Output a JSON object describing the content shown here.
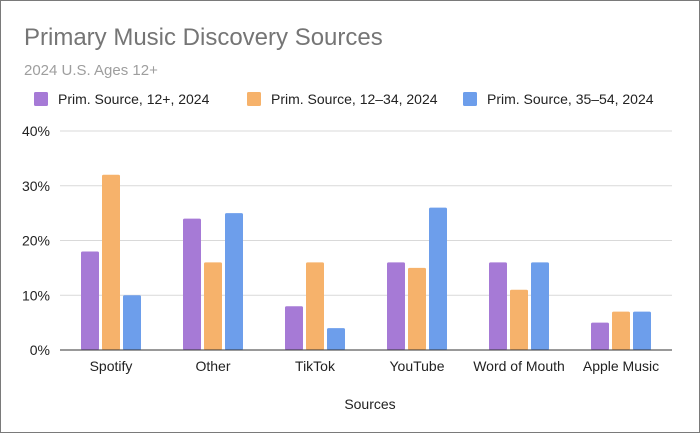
{
  "chart_data": {
    "type": "bar",
    "title": "Primary Music Discovery Sources",
    "subtitle": "2024 U.S. Ages 12+",
    "xlabel": "Sources",
    "ylabel": "",
    "ylim": [
      0,
      40
    ],
    "yticks": [
      0,
      10,
      20,
      30,
      40
    ],
    "ytick_labels": [
      "0%",
      "10%",
      "20%",
      "30%",
      "40%"
    ],
    "grid": true,
    "legend_position": "top",
    "categories": [
      "Spotify",
      "Other",
      "TikTok",
      "YouTube",
      "Word of Mouth",
      "Apple Music"
    ],
    "series": [
      {
        "name": "Prim. Source, 12+, 2024",
        "color": "#a67ad6",
        "values": [
          18,
          24,
          8,
          16,
          16,
          5
        ]
      },
      {
        "name": "Prim. Source, 12–34, 2024",
        "color": "#f6b26b",
        "values": [
          32,
          16,
          16,
          15,
          11,
          7
        ]
      },
      {
        "name": "Prim. Source, 35–54, 2024",
        "color": "#6d9eeb",
        "values": [
          10,
          25,
          4,
          26,
          16,
          7
        ]
      }
    ]
  }
}
